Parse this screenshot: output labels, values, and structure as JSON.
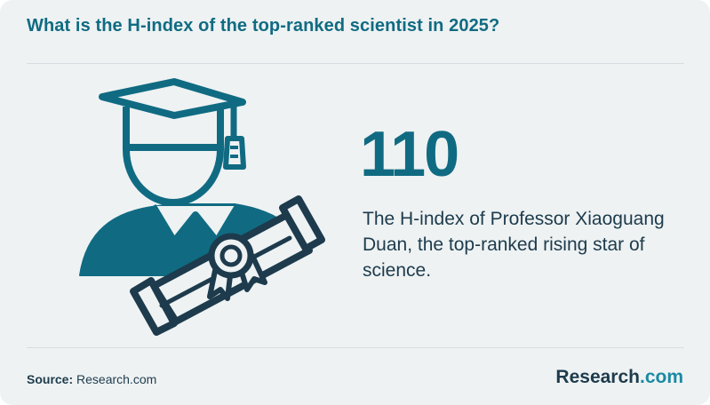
{
  "header": {
    "title": "What is the H-index of the top-ranked scientist in 2025?"
  },
  "stat": {
    "value": "110",
    "caption": "The H-index of Professor Xiaoguang Duan, the top-ranked rising star of science."
  },
  "footer": {
    "source_label": "Source:",
    "source_value": "Research.com",
    "brand_name": "Research",
    "brand_suffix": ".com"
  },
  "illustration": {
    "icon": "graduate-with-diploma-icon",
    "colors": {
      "primary": "#106b82",
      "dark": "#1d3b4c",
      "background": "#eef2f3"
    }
  },
  "colors": {
    "title": "#106b82",
    "body_text": "#1d3b4c",
    "brand_accent": "#1a8aa4",
    "card_background": "#eef2f3"
  }
}
